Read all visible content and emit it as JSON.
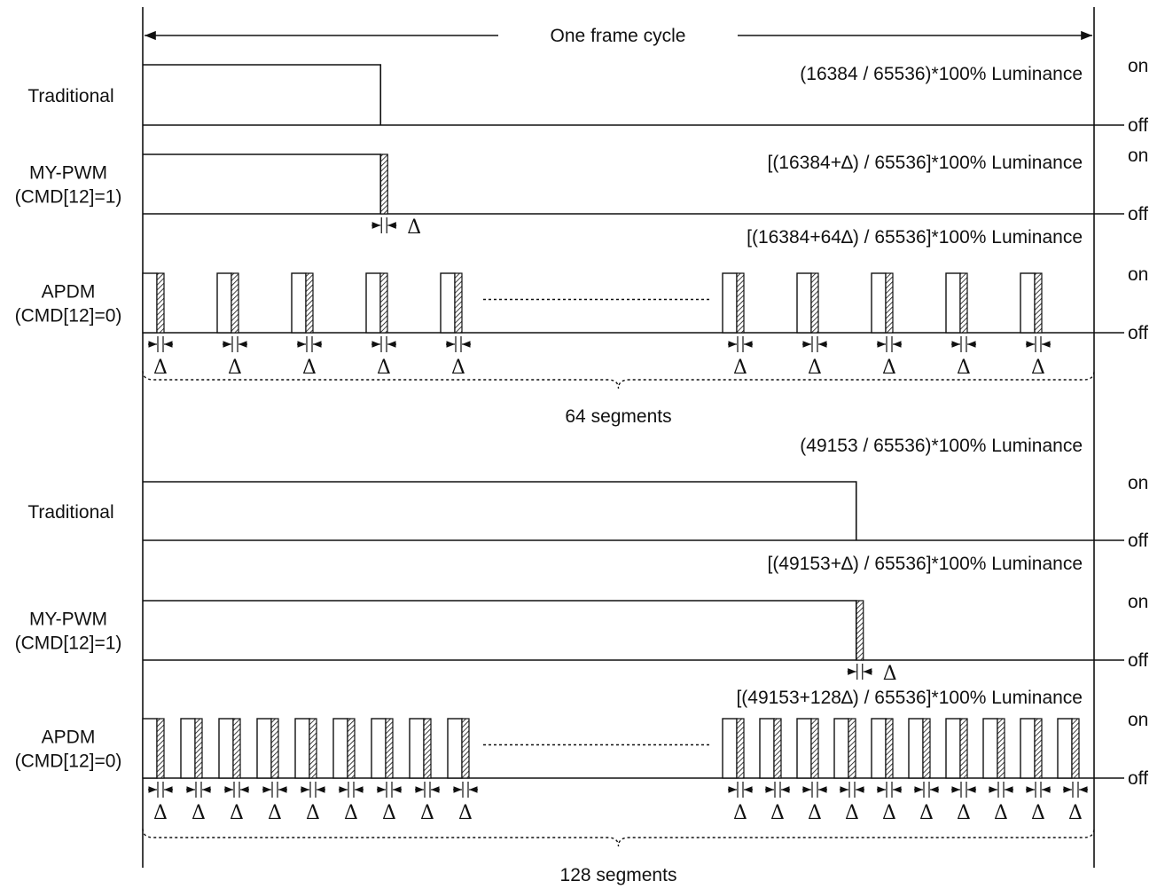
{
  "header": {
    "title": "One frame cycle"
  },
  "state_labels": {
    "on": "on",
    "off": "off"
  },
  "delta_symbol": "Δ",
  "sections": [
    {
      "rows": [
        {
          "label_lines": [
            "Traditional"
          ],
          "annotation": "(16384 / 65536)*100% Luminance",
          "type": "traditional",
          "duty": 0.25
        },
        {
          "label_lines": [
            "MY-PWM",
            "(CMD[12]=1)"
          ],
          "annotation": "[(16384+∆) / 65536]*100% Luminance",
          "type": "mypwm",
          "duty": 0.25
        },
        {
          "label_lines": [
            "APDM",
            "(CMD[12]=0)"
          ],
          "annotation": "[(16384+64∆) / 65536]*100% Luminance",
          "type": "apdm",
          "pulses_left": 5,
          "pulses_right": 5
        }
      ],
      "segments_label": "64 segments"
    },
    {
      "rows": [
        {
          "label_lines": [
            "Traditional"
          ],
          "annotation": "(49153 / 65536)*100% Luminance",
          "type": "traditional",
          "duty": 0.75
        },
        {
          "label_lines": [
            "MY-PWM",
            "(CMD[12]=1)"
          ],
          "annotation": "[(49153+∆) / 65536]*100% Luminance",
          "type": "mypwm",
          "duty": 0.75
        },
        {
          "label_lines": [
            "APDM",
            "(CMD[12]=0)"
          ],
          "annotation": "[(49153+128∆) / 65536]*100% Luminance",
          "type": "apdm",
          "pulses_left": 9,
          "pulses_right": 10
        }
      ],
      "segments_label": "128 segments"
    }
  ]
}
